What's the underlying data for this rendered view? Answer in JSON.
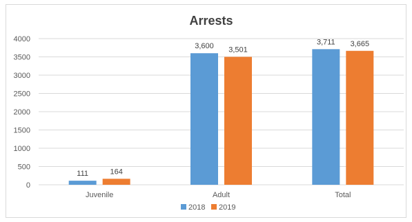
{
  "chart_data": {
    "type": "bar",
    "title": "Arrests",
    "categories": [
      "Juvenile",
      "Adult",
      "Total"
    ],
    "series": [
      {
        "name": "2018",
        "values": [
          111,
          3600,
          3711
        ],
        "labels": [
          "111",
          "3,600",
          "3,711"
        ],
        "color": "#5b9bd5"
      },
      {
        "name": "2019",
        "values": [
          164,
          3501,
          3665
        ],
        "labels": [
          "164",
          "3,501",
          "3,665"
        ],
        "color": "#ed7d31"
      }
    ],
    "ylim": [
      0,
      4000
    ],
    "yticks": [
      0,
      500,
      1000,
      1500,
      2000,
      2500,
      3000,
      3500,
      4000
    ],
    "grid": true,
    "legend_position": "bottom"
  }
}
